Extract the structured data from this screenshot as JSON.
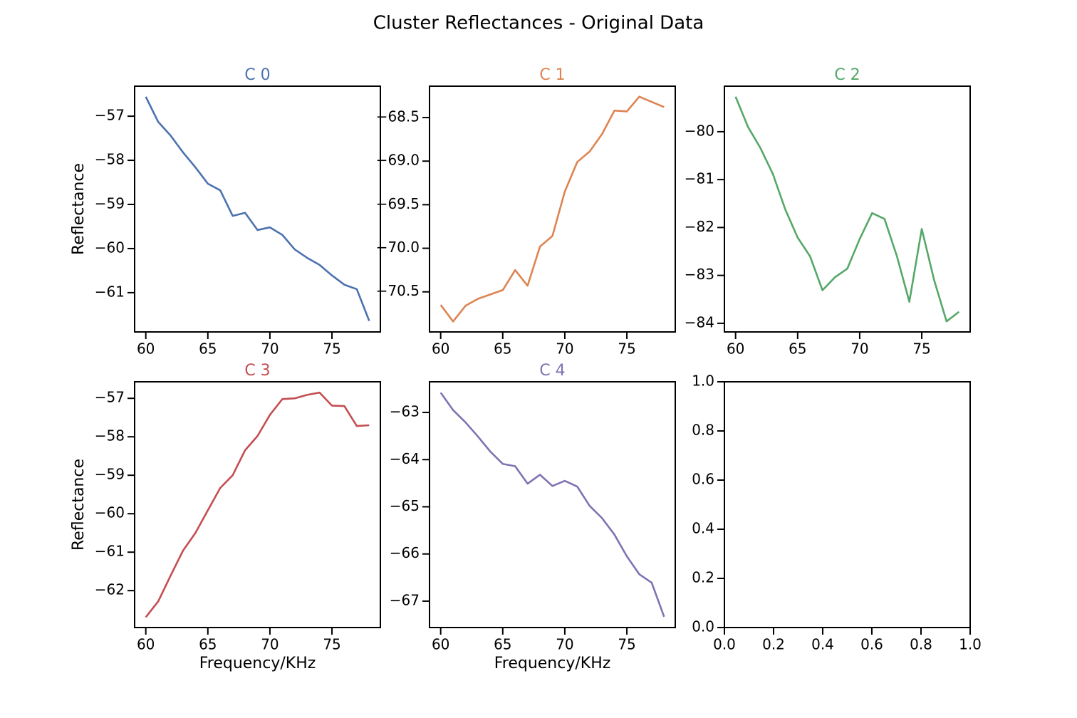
{
  "title": "Cluster Reflectances - Original Data",
  "chart_data": [
    {
      "type": "line",
      "title": "C 0",
      "color": "#4c72b0",
      "ylabel": "Reflectance",
      "x": [
        60,
        61,
        62,
        63,
        64,
        65,
        66,
        67,
        68,
        69,
        70,
        71,
        72,
        73,
        74,
        75,
        76,
        77,
        78
      ],
      "values": [
        -56.56,
        -57.13,
        -57.44,
        -57.82,
        -58.16,
        -58.53,
        -58.68,
        -59.26,
        -59.19,
        -59.58,
        -59.52,
        -59.69,
        -60.02,
        -60.21,
        -60.37,
        -60.61,
        -60.82,
        -60.92,
        -61.64
      ],
      "xlim": [
        59.1,
        78.9
      ],
      "xticks": [
        60,
        65,
        70,
        75
      ],
      "ylim": [
        -61.89,
        -56.32
      ],
      "yticks": [
        {
          "value": -61,
          "label": "−61"
        },
        {
          "value": -60,
          "label": "−60"
        },
        {
          "value": -59,
          "label": "−59"
        },
        {
          "value": -58,
          "label": "−58"
        },
        {
          "value": -57,
          "label": "−57"
        }
      ]
    },
    {
      "type": "line",
      "title": "C 1",
      "color": "#dd8452",
      "x": [
        60,
        61,
        62,
        63,
        64,
        65,
        66,
        67,
        68,
        69,
        70,
        71,
        72,
        73,
        74,
        75,
        76,
        77,
        78
      ],
      "values": [
        -70.65,
        -70.84,
        -70.66,
        -70.58,
        -70.53,
        -70.48,
        -70.25,
        -70.43,
        -69.98,
        -69.86,
        -69.35,
        -69.01,
        -68.89,
        -68.69,
        -68.42,
        -68.43,
        -68.26,
        -68.32,
        -68.38
      ],
      "xlim": [
        59.1,
        78.9
      ],
      "xticks": [
        60,
        65,
        70,
        75
      ],
      "ylim": [
        -70.96,
        -68.14
      ],
      "yticks": [
        {
          "value": -70.5,
          "label": "−70.5"
        },
        {
          "value": -70,
          "label": "−70.0"
        },
        {
          "value": -69.5,
          "label": "−69.5"
        },
        {
          "value": -69,
          "label": "−69.0"
        },
        {
          "value": -68.5,
          "label": "−68.5"
        }
      ]
    },
    {
      "type": "line",
      "title": "C 2",
      "color": "#55a868",
      "x": [
        60,
        61,
        62,
        63,
        64,
        65,
        66,
        67,
        68,
        69,
        70,
        71,
        72,
        73,
        74,
        75,
        76,
        77,
        78
      ],
      "values": [
        -79.27,
        -79.9,
        -80.34,
        -80.88,
        -81.62,
        -82.21,
        -82.6,
        -83.31,
        -83.04,
        -82.86,
        -82.24,
        -81.7,
        -81.82,
        -82.6,
        -83.55,
        -82.03,
        -83.1,
        -83.96,
        -83.76
      ],
      "xlim": [
        59.1,
        78.9
      ],
      "xticks": [
        60,
        65,
        70,
        75
      ],
      "ylim": [
        -84.18,
        -79.05
      ],
      "yticks": [
        {
          "value": -84,
          "label": "−84"
        },
        {
          "value": -83,
          "label": "−83"
        },
        {
          "value": -82,
          "label": "−82"
        },
        {
          "value": -81,
          "label": "−81"
        },
        {
          "value": -80,
          "label": "−80"
        }
      ]
    },
    {
      "type": "line",
      "title": "C 3",
      "color": "#c44e52",
      "ylabel": "Reflectance",
      "xlabel": "Frequency/KHz",
      "x": [
        60,
        61,
        62,
        63,
        64,
        65,
        66,
        67,
        68,
        69,
        70,
        71,
        72,
        73,
        74,
        75,
        76,
        77,
        78
      ],
      "values": [
        -62.69,
        -62.28,
        -61.61,
        -60.96,
        -60.5,
        -59.91,
        -59.33,
        -59.0,
        -58.35,
        -57.98,
        -57.43,
        -57.02,
        -57.0,
        -56.91,
        -56.85,
        -57.19,
        -57.2,
        -57.72,
        -57.7
      ],
      "xlim": [
        59.1,
        78.9
      ],
      "xticks": [
        60,
        65,
        70,
        75
      ],
      "ylim": [
        -62.96,
        -56.57
      ],
      "yticks": [
        {
          "value": -62,
          "label": "−62"
        },
        {
          "value": -61,
          "label": "−61"
        },
        {
          "value": -60,
          "label": "−60"
        },
        {
          "value": -59,
          "label": "−59"
        },
        {
          "value": -58,
          "label": "−58"
        },
        {
          "value": -57,
          "label": "−57"
        }
      ]
    },
    {
      "type": "line",
      "title": "C 4",
      "color": "#8172b3",
      "xlabel": "Frequency/KHz",
      "x": [
        60,
        61,
        62,
        63,
        64,
        65,
        66,
        67,
        68,
        69,
        70,
        71,
        72,
        73,
        74,
        75,
        76,
        77,
        78
      ],
      "values": [
        -62.58,
        -62.95,
        -63.21,
        -63.51,
        -63.83,
        -64.09,
        -64.14,
        -64.51,
        -64.32,
        -64.56,
        -64.45,
        -64.57,
        -64.98,
        -65.24,
        -65.59,
        -66.05,
        -66.43,
        -66.61,
        -67.33
      ],
      "xlim": [
        59.1,
        78.9
      ],
      "xticks": [
        60,
        65,
        70,
        75
      ],
      "ylim": [
        -67.56,
        -62.35
      ],
      "yticks": [
        {
          "value": -67,
          "label": "−67"
        },
        {
          "value": -66,
          "label": "−66"
        },
        {
          "value": -65,
          "label": "−65"
        },
        {
          "value": -64,
          "label": "−64"
        },
        {
          "value": -63,
          "label": "−63"
        }
      ]
    },
    {
      "type": "empty",
      "xlim": [
        0,
        1
      ],
      "xticks": [
        {
          "value": 0,
          "label": "0.0"
        },
        {
          "value": 0.2,
          "label": "0.2"
        },
        {
          "value": 0.4,
          "label": "0.4"
        },
        {
          "value": 0.6,
          "label": "0.6"
        },
        {
          "value": 0.8,
          "label": "0.8"
        },
        {
          "value": 1,
          "label": "1.0"
        }
      ],
      "ylim": [
        0,
        1
      ],
      "yticks": [
        {
          "value": 0,
          "label": "0.0"
        },
        {
          "value": 0.2,
          "label": "0.2"
        },
        {
          "value": 0.4,
          "label": "0.4"
        },
        {
          "value": 0.6,
          "label": "0.6"
        },
        {
          "value": 0.8,
          "label": "0.8"
        },
        {
          "value": 1,
          "label": "1.0"
        }
      ]
    }
  ]
}
